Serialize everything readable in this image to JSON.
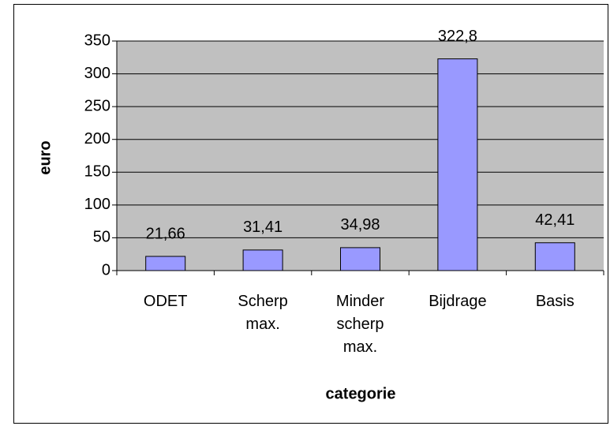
{
  "chart_data": {
    "type": "bar",
    "x_label": "categorie",
    "y_label": "euro",
    "categories": [
      "ODET",
      "Scherp max.",
      "Minder scherp max.",
      "Bijdrage",
      "Basis"
    ],
    "values": [
      21.66,
      31.41,
      34.98,
      322.8,
      42.41
    ],
    "value_labels": [
      "21,66",
      "31,41",
      "34,98",
      "322,8",
      "42,41"
    ],
    "color": "#9999ff",
    "plot_background": "#c0c0c0",
    "ylim": [
      0,
      350
    ],
    "yticks": [
      0,
      50,
      100,
      150,
      200,
      250,
      300,
      350
    ],
    "grid": true
  }
}
